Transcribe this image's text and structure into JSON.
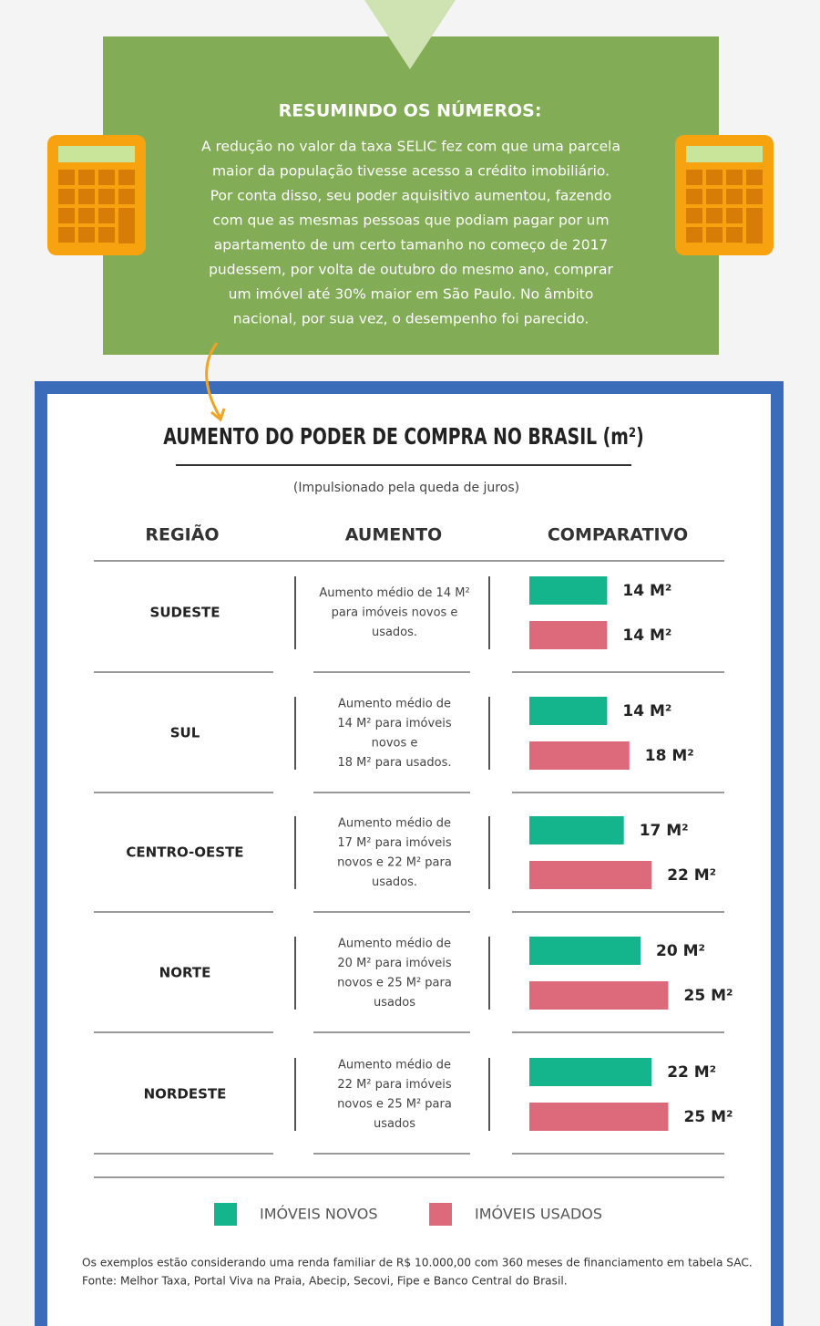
{
  "summary": {
    "title": "RESUMINDO OS NÚMEROS:",
    "lines": [
      "A redução no valor da taxa SELIC fez com que uma parcela",
      "maior da população tivesse acesso a  crédito imobiliário.",
      "Por conta disso, seu poder aquisitivo aumentou, fazendo",
      "com que as mesmas pessoas que podiam pagar por um",
      "apartamento de um certo tamanho  no começo de 2017",
      "pudessem, por volta de outubro do mesmo ano, comprar",
      "um imóvel até 30% maior em São Paulo. No âmbito",
      "nacional, por sua vez, o desempenho foi parecido."
    ]
  },
  "chart_data": {
    "type": "bar",
    "title": "AUMENTO DO PODER DE COMPRA NO BRASIL (m²)",
    "subtitle": "(Impulsionado pela queda de juros)",
    "columns": [
      "REGIÃO",
      "AUMENTO",
      "COMPARATIVO"
    ],
    "categories": [
      "SUDESTE",
      "SUL",
      "CENTRO-OESTE",
      "NORTE",
      "NORDESTE"
    ],
    "descriptions": [
      [
        "Aumento médio de 14  M²",
        "para imóveis novos e",
        "usados."
      ],
      [
        "Aumento médio de",
        "14  M² para imóveis",
        "novos e",
        "18  M² para usados."
      ],
      [
        "Aumento médio de",
        "17  M² para imóveis",
        "novos e 22  M² para",
        "usados."
      ],
      [
        "Aumento médio de",
        "20  M² para imóveis",
        "novos e 25  M² para",
        "usados"
      ],
      [
        "Aumento médio de",
        "22  M² para imóveis",
        "novos e 25  M² para",
        "usados"
      ]
    ],
    "series": [
      {
        "name": "IMÓVEIS NOVOS",
        "color": "#14b48c",
        "values": [
          14,
          14,
          17,
          20,
          22
        ],
        "value_labels": [
          "14 M²",
          "14 M²",
          "17 M²",
          "20 M²",
          "22 M²"
        ]
      },
      {
        "name": "IMÓVEIS USADOS",
        "color": "#dd6a7b",
        "values": [
          14,
          18,
          22,
          25,
          25
        ],
        "value_labels": [
          "14 M²",
          "18 M²",
          "22 M²",
          "25 M²",
          "25 M²"
        ]
      }
    ],
    "notes": [
      "Os exemplos estão considerando uma renda familiar de R$ 10.000,00 com 360 meses de financiamento em tabela SAC.",
      "Fonte: Melhor Taxa, Portal Viva na Praia, Abecip, Secovi, Fipe e Banco Central do Brasil."
    ]
  }
}
